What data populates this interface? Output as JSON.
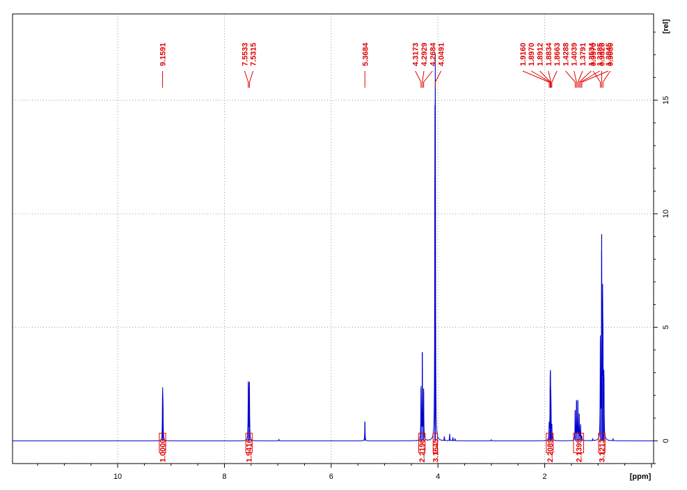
{
  "chart_data": {
    "type": "line",
    "xlabel": "[ppm]",
    "ylabel": "[rel]",
    "xlim": [
      11.97,
      -0.04
    ],
    "ylim": [
      -1.0,
      18.8
    ],
    "x_ticks": [
      10,
      8,
      6,
      4,
      2
    ],
    "y_ticks": [
      0,
      5,
      10,
      15
    ],
    "grid": true,
    "line_color": "#0000cc",
    "label_color": "#e00000",
    "peak_labels": [
      {
        "group": [
          {
            "text": "9.1591",
            "ppm": 9.1591
          }
        ]
      },
      {
        "group": [
          {
            "text": "7.5533",
            "ppm": 7.5533
          },
          {
            "text": "7.5315",
            "ppm": 7.5315
          }
        ]
      },
      {
        "group": [
          {
            "text": "5.3684",
            "ppm": 5.3684
          }
        ]
      },
      {
        "group": [
          {
            "text": "4.3173",
            "ppm": 4.3173
          },
          {
            "text": "4.2929",
            "ppm": 4.2929
          },
          {
            "text": "4.2684",
            "ppm": 4.2684
          },
          {
            "text": "4.0491",
            "ppm": 4.0491
          }
        ]
      },
      {
        "group": [
          {
            "text": "1.9160",
            "ppm": 1.916
          },
          {
            "text": "1.8970",
            "ppm": 1.897
          },
          {
            "text": "1.8912",
            "ppm": 1.8912
          },
          {
            "text": "1.8834",
            "ppm": 1.8834
          },
          {
            "text": "1.8663",
            "ppm": 1.8663
          },
          {
            "text": "1.4288",
            "ppm": 1.4288
          },
          {
            "text": "1.4039",
            "ppm": 1.4039
          },
          {
            "text": "1.3791",
            "ppm": 1.3791
          },
          {
            "text": "1.3534",
            "ppm": 1.3534
          },
          {
            "text": "1.3285",
            "ppm": 1.3285
          },
          {
            "text": "1.3045",
            "ppm": 1.3045
          }
        ]
      },
      {
        "group": [
          {
            "text": "0.9570",
            "ppm": 0.957
          },
          {
            "text": "0.9326",
            "ppm": 0.9326
          },
          {
            "text": "0.9080",
            "ppm": 0.908
          }
        ]
      }
    ],
    "integrals": [
      {
        "value": "1.0000",
        "from": 9.22,
        "to": 9.1
      },
      {
        "value": "1.9416",
        "from": 7.6,
        "to": 7.48
      },
      {
        "value": "2.2196",
        "from": 4.36,
        "to": 4.24
      },
      {
        "value": "3.1645",
        "from": 4.09,
        "to": 4.01
      },
      {
        "value": "2.2089",
        "from": 1.97,
        "to": 1.84
      },
      {
        "value": "2.1399",
        "from": 1.46,
        "to": 1.27
      },
      {
        "value": "3.1213",
        "from": 0.99,
        "to": 0.87
      }
    ],
    "peaks": [
      {
        "ppm": 9.1591,
        "height": 2.1
      },
      {
        "ppm": 9.152,
        "height": 1.5
      },
      {
        "ppm": 7.5533,
        "height": 2.55
      },
      {
        "ppm": 7.5315,
        "height": 2.6
      },
      {
        "ppm": 6.98,
        "height": 0.06
      },
      {
        "ppm": 5.3684,
        "height": 0.85
      },
      {
        "ppm": 4.3173,
        "height": 2.3
      },
      {
        "ppm": 4.2929,
        "height": 3.9
      },
      {
        "ppm": 4.2684,
        "height": 2.3
      },
      {
        "ppm": 4.0491,
        "height": 15.0
      },
      {
        "ppm": 4.057,
        "height": 11.6
      },
      {
        "ppm": 3.88,
        "height": 0.18
      },
      {
        "ppm": 3.78,
        "height": 0.3
      },
      {
        "ppm": 3.72,
        "height": 0.15
      },
      {
        "ppm": 3.68,
        "height": 0.1
      },
      {
        "ppm": 3.0,
        "height": 0.05
      },
      {
        "ppm": 1.916,
        "height": 0.7
      },
      {
        "ppm": 1.897,
        "height": 2.4
      },
      {
        "ppm": 1.8912,
        "height": 1.9
      },
      {
        "ppm": 1.8834,
        "height": 1.55
      },
      {
        "ppm": 1.8663,
        "height": 0.65
      },
      {
        "ppm": 1.4288,
        "height": 1.35
      },
      {
        "ppm": 1.4039,
        "height": 1.75
      },
      {
        "ppm": 1.3791,
        "height": 1.8
      },
      {
        "ppm": 1.3534,
        "height": 1.2
      },
      {
        "ppm": 1.3285,
        "height": 0.7
      },
      {
        "ppm": 1.3045,
        "height": 0.2
      },
      {
        "ppm": 1.1,
        "height": 0.08
      },
      {
        "ppm": 0.957,
        "height": 4.4
      },
      {
        "ppm": 0.9326,
        "height": 9.1
      },
      {
        "ppm": 0.915,
        "height": 5.6
      },
      {
        "ppm": 0.908,
        "height": 3.5
      },
      {
        "ppm": 0.89,
        "height": 2.8
      },
      {
        "ppm": 0.72,
        "height": 0.08
      }
    ]
  }
}
